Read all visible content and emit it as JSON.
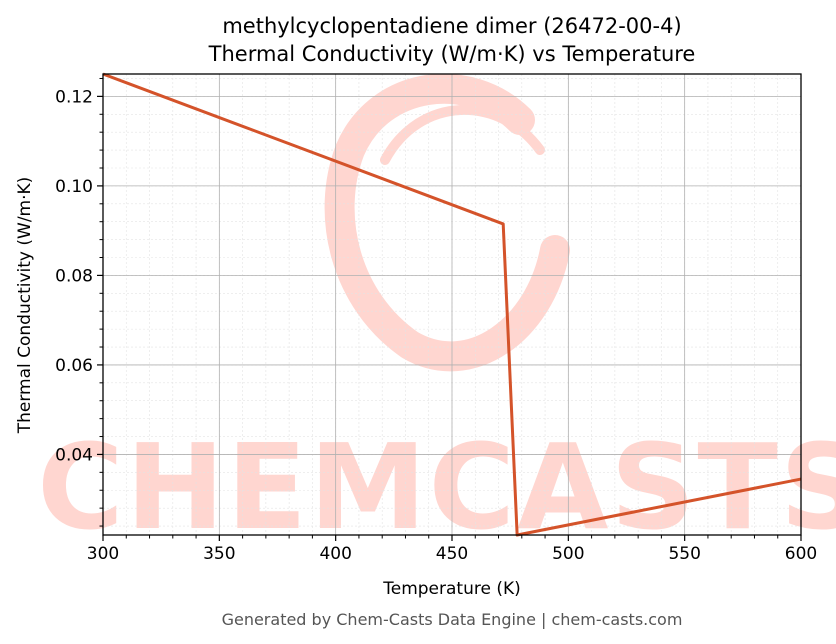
{
  "chart_data": {
    "type": "line",
    "title": "methylcyclopentadiene dimer (26472-00-4)",
    "subtitle": "Thermal Conductivity (W/m·K) vs Temperature",
    "xlabel": "Temperature (K)",
    "ylabel": "Thermal Conductivity (W/m·K)",
    "xlim": [
      300,
      600
    ],
    "ylim": [
      0.022,
      0.125
    ],
    "x_ticks": [
      300,
      350,
      400,
      450,
      500,
      550,
      600
    ],
    "x_tick_labels": [
      "300",
      "350",
      "400",
      "450",
      "500",
      "550",
      "600"
    ],
    "y_ticks": [
      0.04,
      0.06,
      0.08,
      0.1,
      0.12
    ],
    "y_tick_labels": [
      "0.04",
      "0.06",
      "0.08",
      "0.10",
      "0.12"
    ],
    "grid": true,
    "series": [
      {
        "color": "#d4532a",
        "x": [
          300,
          472,
          478,
          600
        ],
        "y": [
          0.125,
          0.0915,
          0.022,
          0.0345
        ]
      }
    ]
  },
  "watermark": {
    "text": "CHEMCASTS",
    "color": "#ffd6d0"
  },
  "footer": "Generated by Chem-Casts Data Engine | chem-casts.com"
}
